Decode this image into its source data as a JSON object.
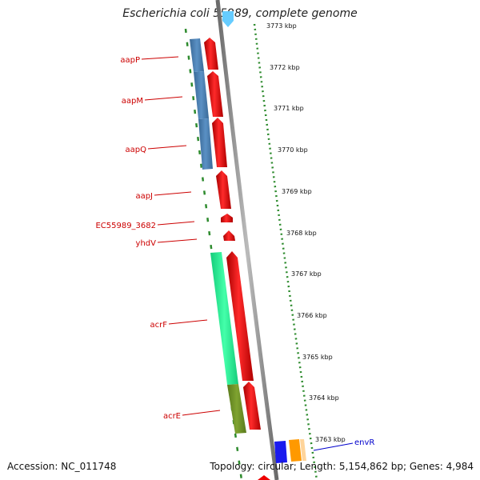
{
  "header": {
    "title": "Escherichia coli 55989, complete genome"
  },
  "footer": {
    "accession": "Accession: NC_011748",
    "summary": "Topology: circular; Length: 5,154,862 bp; Genes: 4,984"
  },
  "ruler": {
    "ticks": [
      {
        "label": "3773 kbp"
      },
      {
        "label": "3772 kbp"
      },
      {
        "label": "3771 kbp"
      },
      {
        "label": "3770 kbp"
      },
      {
        "label": "3769 kbp"
      },
      {
        "label": "3768 kbp"
      },
      {
        "label": "3767 kbp"
      },
      {
        "label": "3766 kbp"
      },
      {
        "label": "3765 kbp"
      },
      {
        "label": "3764 kbp"
      },
      {
        "label": "3763 kbp"
      }
    ]
  },
  "genes": [
    {
      "name": "aapP"
    },
    {
      "name": "aapM"
    },
    {
      "name": "aapQ"
    },
    {
      "name": "aapJ"
    },
    {
      "name": "EC55989_3682"
    },
    {
      "name": "yhdV"
    },
    {
      "name": "acrF"
    },
    {
      "name": "acrE"
    },
    {
      "name": "envR"
    }
  ],
  "colors": {
    "cds": "#ee0000",
    "cog_blue": "#4a7fb0",
    "cog_green": "#22ee99",
    "cog_olive": "#6b8e23",
    "backbone": "#888888",
    "tick": "#2e8b2e",
    "label_red": "#cc0000",
    "label_blue": "#0000cc"
  }
}
